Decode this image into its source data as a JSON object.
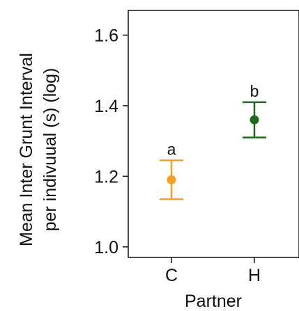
{
  "chart_data": {
    "type": "scatter",
    "xlabel": "Partner",
    "ylabel_lines": [
      "Mean Inter Grunt Interval",
      "per indivuual (s) (log)"
    ],
    "categories": [
      "C",
      "H"
    ],
    "ylim": [
      0.97,
      1.67
    ],
    "yticks": [
      1.0,
      1.2,
      1.4,
      1.6
    ],
    "ytick_labels": [
      "1.0",
      "1.2",
      "1.4",
      "1.6"
    ],
    "grid": false,
    "legend": "none",
    "points": [
      {
        "category": "C",
        "mean": 1.19,
        "lower": 1.135,
        "upper": 1.245,
        "letter": "a",
        "color": "#F5A020"
      },
      {
        "category": "H",
        "mean": 1.36,
        "lower": 1.31,
        "upper": 1.41,
        "letter": "b",
        "color": "#1A6B1A"
      }
    ]
  }
}
